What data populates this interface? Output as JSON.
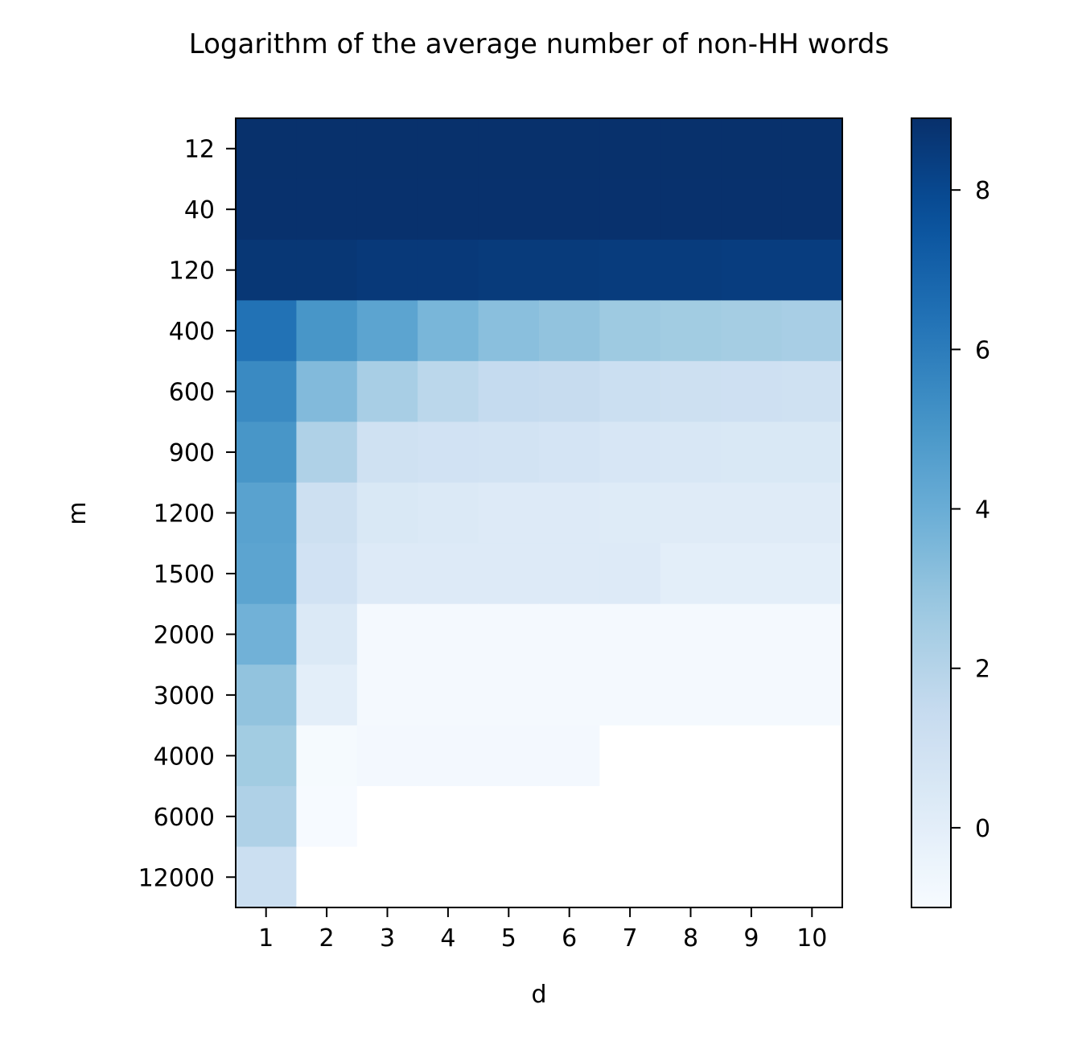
{
  "chart_data": {
    "type": "heatmap",
    "title": "Logarithm of the average number of non-HH words",
    "xlabel": "d",
    "ylabel": "m",
    "x_categories": [
      "1",
      "2",
      "3",
      "4",
      "5",
      "6",
      "7",
      "8",
      "9",
      "10"
    ],
    "y_categories": [
      "12",
      "40",
      "120",
      "400",
      "600",
      "900",
      "1200",
      "1500",
      "2000",
      "3000",
      "4000",
      "6000",
      "12000"
    ],
    "colormap": "Blues",
    "color_range": [
      -1.0,
      8.9
    ],
    "colorbar_ticks": [
      0,
      2,
      4,
      6,
      8
    ],
    "colorbar_tick_labels": [
      "0",
      "2",
      "4",
      "6",
      "8"
    ],
    "empty_cell_color": "#ffffff",
    "values": [
      [
        8.88,
        8.88,
        8.88,
        8.88,
        8.88,
        8.88,
        8.88,
        8.88,
        8.88,
        8.88
      ],
      [
        8.86,
        8.86,
        8.86,
        8.86,
        8.86,
        8.86,
        8.86,
        8.86,
        8.86,
        8.86
      ],
      [
        8.65,
        8.65,
        8.55,
        8.55,
        8.5,
        8.5,
        8.45,
        8.45,
        8.4,
        8.4
      ],
      [
        6.4,
        5.0,
        4.4,
        3.6,
        3.2,
        3.0,
        2.7,
        2.6,
        2.5,
        2.4
      ],
      [
        5.5,
        3.4,
        2.4,
        1.8,
        1.5,
        1.4,
        1.2,
        1.1,
        1.05,
        1.0
      ],
      [
        5.0,
        2.2,
        1.0,
        0.9,
        0.85,
        0.75,
        0.6,
        0.55,
        0.5,
        0.5
      ],
      [
        4.5,
        1.1,
        0.5,
        0.4,
        0.3,
        0.3,
        0.25,
        0.2,
        0.2,
        0.2
      ],
      [
        4.4,
        0.9,
        0.3,
        0.3,
        0.3,
        0.3,
        0.3,
        0.0,
        0.0,
        0.0
      ],
      [
        3.8,
        0.4,
        -0.85,
        -0.85,
        -0.85,
        -0.85,
        -0.85,
        -0.85,
        -0.85,
        -0.85
      ],
      [
        3.0,
        0.0,
        -0.85,
        -0.85,
        -0.85,
        -0.85,
        -0.85,
        -0.85,
        -0.85,
        -0.85
      ],
      [
        2.6,
        -0.9,
        -0.8,
        -0.8,
        -0.8,
        -0.8,
        null,
        null,
        null,
        null
      ],
      [
        2.2,
        -0.95,
        null,
        null,
        null,
        null,
        null,
        null,
        null,
        null
      ],
      [
        1.2,
        null,
        null,
        null,
        null,
        null,
        null,
        null,
        null,
        null
      ]
    ]
  }
}
